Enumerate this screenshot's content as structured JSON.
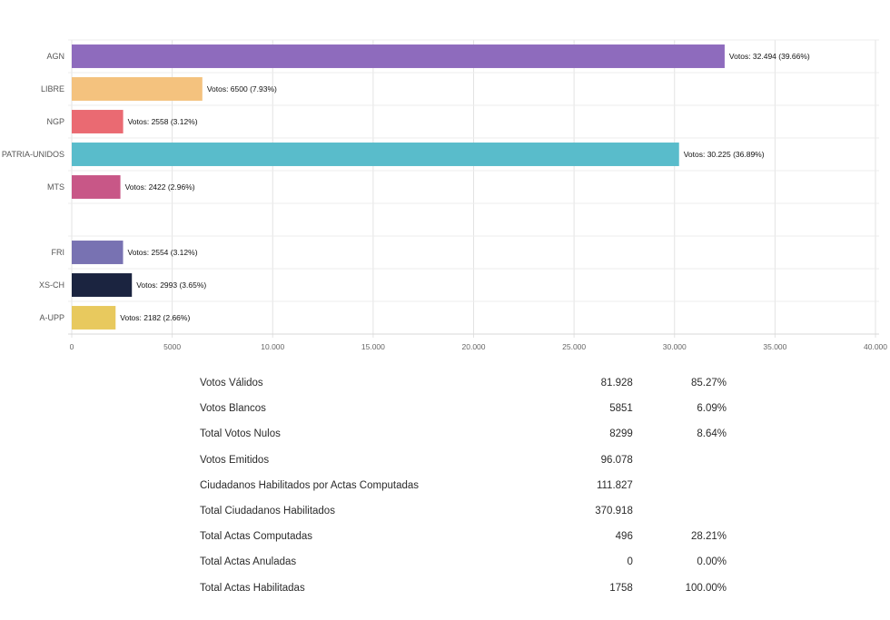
{
  "chart_data": {
    "type": "bar",
    "orientation": "horizontal",
    "title": "",
    "xlabel": "",
    "ylabel": "",
    "xlim": [
      0,
      40000
    ],
    "x_ticks": [
      0,
      5000,
      10000,
      15000,
      20000,
      25000,
      30000,
      35000,
      40000
    ],
    "x_tick_labels": [
      "0",
      "5000",
      "10.000",
      "15.000",
      "20.000",
      "25.000",
      "30.000",
      "35.000",
      "40.000"
    ],
    "grid": true,
    "legend": "none",
    "categories": [
      "AGN",
      "LIBRE",
      "NGP",
      "PATRIA-UNIDOS",
      "MTS",
      "",
      "FRI",
      "XS-CH",
      "A-UPP"
    ],
    "values": [
      32494,
      6500,
      2558,
      30225,
      2422,
      null,
      2554,
      2993,
      2182
    ],
    "percentages": [
      "39.66%",
      "7.93%",
      "3.12%",
      "36.89%",
      "2.96%",
      null,
      "3.12%",
      "3.65%",
      "2.66%"
    ],
    "data_labels": [
      "Votos: 32.494 (39.66%)",
      "Votos: 6500 (7.93%)",
      "Votos: 2558 (3.12%)",
      "Votos: 30.225 (36.89%)",
      "Votos: 2422 (2.96%)",
      "",
      "Votos: 2554 (3.12%)",
      "Votos: 2993 (3.65%)",
      "Votos: 2182 (2.66%)"
    ],
    "colors": [
      "#8e6bbd",
      "#f4c27e",
      "#ea6a72",
      "#59bccb",
      "#c85787",
      null,
      "#7872b2",
      "#1b2440",
      "#e8c95e"
    ]
  },
  "summary": {
    "rows": [
      {
        "label": "Votos Válidos",
        "value": "81.928",
        "percent": "85.27%"
      },
      {
        "label": "Votos Blancos",
        "value": "5851",
        "percent": "6.09%"
      },
      {
        "label": "Total Votos Nulos",
        "value": "8299",
        "percent": "8.64%"
      },
      {
        "label": "Votos Emitidos",
        "value": "96.078",
        "percent": ""
      },
      {
        "label": "Ciudadanos Habilitados por Actas Computadas",
        "value": "111.827",
        "percent": ""
      },
      {
        "label": "Total Ciudadanos Habilitados",
        "value": "370.918",
        "percent": ""
      },
      {
        "label": "Total Actas Computadas",
        "value": "496",
        "percent": "28.21%"
      },
      {
        "label": "Total Actas Anuladas",
        "value": "0",
        "percent": "0.00%"
      },
      {
        "label": "Total Actas Habilitadas",
        "value": "1758",
        "percent": "100.00%"
      }
    ]
  }
}
